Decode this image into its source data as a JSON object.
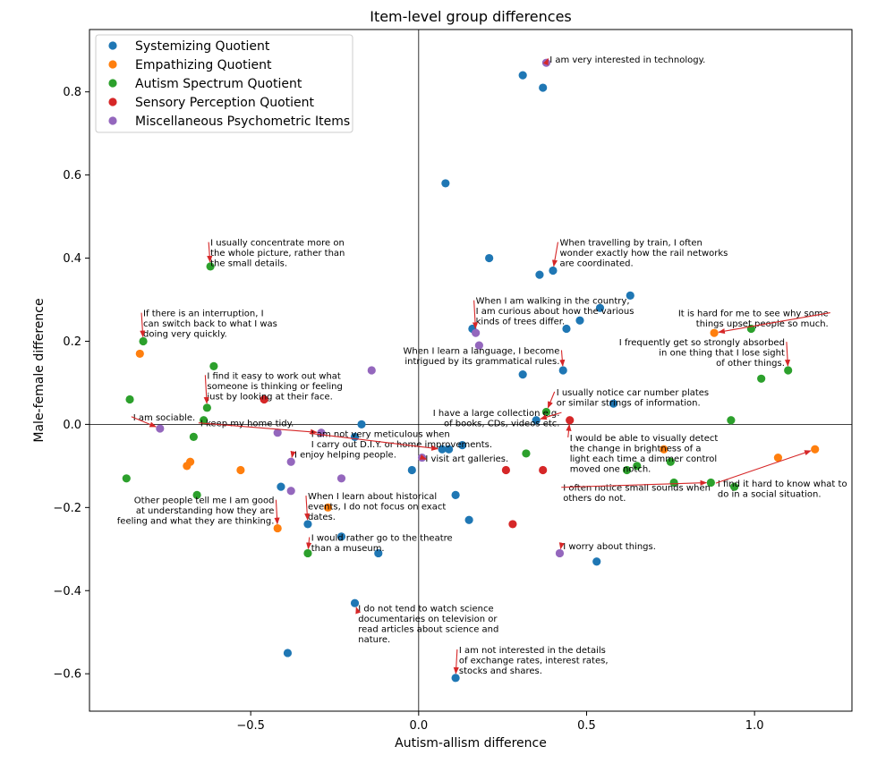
{
  "chart_data": {
    "type": "scatter",
    "title": "Item-level group differences",
    "xlabel": "Autism-allism difference",
    "ylabel": "Male-female difference",
    "xlim": [
      -0.98,
      1.29
    ],
    "ylim": [
      -0.69,
      0.95
    ],
    "xticks": [
      -0.5,
      0.0,
      0.5,
      1.0
    ],
    "yticks": [
      -0.6,
      -0.4,
      -0.2,
      0.0,
      0.2,
      0.4,
      0.6,
      0.8
    ],
    "xtick_labels": [
      "−0.5",
      "0.0",
      "0.5",
      "1.0"
    ],
    "ytick_labels": [
      "−0.6",
      "−0.4",
      "−0.2",
      "0.0",
      "0.2",
      "0.4",
      "0.6",
      "0.8"
    ],
    "zero_lines": true,
    "legend_position": "top-left",
    "series": [
      {
        "name": "Systemizing Quotient",
        "color": "#1f77b4",
        "points": [
          [
            0.31,
            0.84
          ],
          [
            0.37,
            0.81
          ],
          [
            0.08,
            0.58
          ],
          [
            0.21,
            0.4
          ],
          [
            0.36,
            0.36
          ],
          [
            0.4,
            0.37
          ],
          [
            0.63,
            0.31
          ],
          [
            0.54,
            0.28
          ],
          [
            0.48,
            0.25
          ],
          [
            0.44,
            0.23
          ],
          [
            0.16,
            0.23
          ],
          [
            0.31,
            0.12
          ],
          [
            0.43,
            0.13
          ],
          [
            0.58,
            0.05
          ],
          [
            0.35,
            0.01
          ],
          [
            -0.17,
            0.0
          ],
          [
            -0.19,
            -0.03
          ],
          [
            0.13,
            -0.05
          ],
          [
            0.07,
            -0.06
          ],
          [
            0.09,
            -0.06
          ],
          [
            -0.02,
            -0.11
          ],
          [
            -0.41,
            -0.15
          ],
          [
            0.11,
            -0.17
          ],
          [
            -0.33,
            -0.24
          ],
          [
            0.15,
            -0.23
          ],
          [
            -0.23,
            -0.27
          ],
          [
            -0.12,
            -0.31
          ],
          [
            0.53,
            -0.33
          ],
          [
            -0.19,
            -0.43
          ],
          [
            -0.39,
            -0.55
          ],
          [
            0.11,
            -0.61
          ]
        ]
      },
      {
        "name": "Empathizing Quotient",
        "color": "#ff7f0e",
        "points": [
          [
            -0.83,
            0.17
          ],
          [
            -0.68,
            -0.09
          ],
          [
            -0.69,
            -0.1
          ],
          [
            -0.53,
            -0.11
          ],
          [
            -0.27,
            -0.2
          ],
          [
            -0.42,
            -0.25
          ],
          [
            0.73,
            -0.06
          ],
          [
            0.88,
            0.22
          ],
          [
            1.07,
            -0.08
          ],
          [
            1.18,
            -0.06
          ]
        ]
      },
      {
        "name": "Autism Spectrum Quotient",
        "color": "#2ca02c",
        "points": [
          [
            -0.62,
            0.38
          ],
          [
            -0.82,
            0.2
          ],
          [
            -0.61,
            0.14
          ],
          [
            -0.86,
            0.06
          ],
          [
            -0.63,
            0.04
          ],
          [
            -0.64,
            0.01
          ],
          [
            -0.67,
            -0.03
          ],
          [
            -0.87,
            -0.13
          ],
          [
            -0.66,
            -0.17
          ],
          [
            -0.33,
            -0.31
          ],
          [
            0.32,
            -0.07
          ],
          [
            0.38,
            0.03
          ],
          [
            0.62,
            -0.11
          ],
          [
            0.65,
            -0.1
          ],
          [
            0.75,
            -0.09
          ],
          [
            0.76,
            -0.14
          ],
          [
            0.87,
            -0.14
          ],
          [
            0.94,
            -0.15
          ],
          [
            0.93,
            0.01
          ],
          [
            0.99,
            0.23
          ],
          [
            1.02,
            0.11
          ],
          [
            1.1,
            0.13
          ]
        ]
      },
      {
        "name": "Sensory Perception Quotient",
        "color": "#d62728",
        "points": [
          [
            -0.46,
            0.06
          ],
          [
            0.26,
            -0.11
          ],
          [
            0.37,
            -0.11
          ],
          [
            0.28,
            -0.24
          ],
          [
            0.45,
            0.01
          ]
        ]
      },
      {
        "name": "Miscellaneous Psychometric Items",
        "color": "#9467bd",
        "points": [
          [
            0.38,
            0.87
          ],
          [
            0.18,
            0.19
          ],
          [
            0.17,
            0.22
          ],
          [
            -0.14,
            0.13
          ],
          [
            -0.77,
            -0.01
          ],
          [
            -0.42,
            -0.02
          ],
          [
            -0.29,
            -0.02
          ],
          [
            -0.38,
            -0.09
          ],
          [
            0.01,
            -0.08
          ],
          [
            -0.23,
            -0.13
          ],
          [
            -0.38,
            -0.16
          ],
          [
            0.42,
            -0.31
          ]
        ]
      }
    ],
    "annotations": [
      {
        "lines": [
          "I am very interested in technology."
        ],
        "text_at": [
          0.39,
          0.87
        ],
        "point": [
          0.38,
          0.87
        ],
        "arrow": true
      },
      {
        "lines": [
          "I usually concentrate more on",
          "the whole picture, rather than",
          "the small details."
        ],
        "text_at": [
          -0.62,
          0.43
        ],
        "point": [
          -0.62,
          0.38
        ],
        "arrow": true
      },
      {
        "lines": [
          "When travelling by train, I often",
          "wonder exactly how the rail networks",
          "are coordinated."
        ],
        "text_at": [
          0.42,
          0.43
        ],
        "point": [
          0.4,
          0.37
        ],
        "arrow": true
      },
      {
        "lines": [
          "When I am walking in the country,",
          "I am curious about how the various",
          "kinds of trees differ."
        ],
        "text_at": [
          0.17,
          0.29
        ],
        "point": [
          0.17,
          0.22
        ],
        "arrow": true
      },
      {
        "lines": [
          "If there is an interruption, I",
          "can switch back to what I was",
          "doing very quickly."
        ],
        "text_at": [
          -0.82,
          0.26
        ],
        "point": [
          -0.82,
          0.2
        ],
        "arrow": true
      },
      {
        "lines": [
          "It is hard for me to see why some",
          "things upset people so much."
        ],
        "text_at": [
          1.22,
          0.26
        ],
        "point": [
          0.88,
          0.22
        ],
        "arrow": true,
        "align": "end"
      },
      {
        "lines": [
          "I frequently get so strongly absorbed",
          "in one thing that I lose sight",
          "of other things."
        ],
        "text_at": [
          1.09,
          0.19
        ],
        "point": [
          1.1,
          0.13
        ],
        "arrow": true,
        "align": "end"
      },
      {
        "lines": [
          "When I learn a language, I become",
          "intrigued by its grammatical rules."
        ],
        "text_at": [
          0.42,
          0.17
        ],
        "point": [
          0.43,
          0.13
        ],
        "arrow": true,
        "align": "end"
      },
      {
        "lines": [
          "I find it easy to work out what",
          "someone is thinking or feeling",
          "just by looking at their face."
        ],
        "text_at": [
          -0.63,
          0.11
        ],
        "point": [
          -0.63,
          0.04
        ],
        "arrow": true
      },
      {
        "lines": [
          "I usually notice car number plates",
          "or similar strings of information."
        ],
        "text_at": [
          0.41,
          0.07
        ],
        "point": [
          0.38,
          0.03
        ],
        "arrow": true
      },
      {
        "lines": [
          "I am sociable."
        ],
        "text_at": [
          -0.85,
          0.01
        ],
        "point": [
          -0.77,
          -0.01
        ],
        "arrow": true
      },
      {
        "lines": [
          "I keep my home tidy."
        ],
        "text_at": [
          -0.65,
          -0.005
        ],
        "point": [
          -0.29,
          -0.02
        ],
        "arrow": true
      },
      {
        "lines": [
          "I have a large collection e.g.",
          "of books, CDs, videos etc."
        ],
        "text_at": [
          0.42,
          0.02
        ],
        "point": [
          0.35,
          0.01
        ],
        "arrow": true,
        "align": "end"
      },
      {
        "lines": [
          "I would be able to visually detect",
          "the change in brightness of a",
          "light each time a dimmer control",
          "moved one notch."
        ],
        "text_at": [
          0.45,
          -0.04
        ],
        "point": [
          0.45,
          0.01
        ],
        "arrow": true
      },
      {
        "lines": [
          "I am not very meticulous when",
          "I carry out D.I.Y. or home improvements."
        ],
        "text_at": [
          -0.32,
          -0.03
        ],
        "point": [
          0.07,
          -0.06
        ],
        "arrow": true
      },
      {
        "lines": [
          "I enjoy helping people."
        ],
        "text_at": [
          -0.37,
          -0.08
        ],
        "point": [
          -0.38,
          -0.09
        ],
        "arrow": true
      },
      {
        "lines": [
          "I visit art galleries."
        ],
        "text_at": [
          0.02,
          -0.09
        ],
        "point": [
          0.01,
          -0.08
        ],
        "arrow": true
      },
      {
        "lines": [
          "I often notice small sounds when",
          "others do not."
        ],
        "text_at": [
          0.43,
          -0.16
        ],
        "point": [
          0.87,
          -0.14
        ],
        "arrow": true
      },
      {
        "lines": [
          "I find it hard to know what to",
          "do in a social situation."
        ],
        "text_at": [
          0.89,
          -0.15
        ],
        "point": [
          1.18,
          -0.06
        ],
        "arrow": true
      },
      {
        "lines": [
          "Other people tell me I am good",
          "at understanding how they are",
          "feeling and what they are thinking."
        ],
        "text_at": [
          -0.43,
          -0.19
        ],
        "point": [
          -0.42,
          -0.25
        ],
        "arrow": true,
        "align": "end"
      },
      {
        "lines": [
          "When I learn about historical",
          "events, I do not focus on exact",
          "dates."
        ],
        "text_at": [
          -0.33,
          -0.18
        ],
        "point": [
          -0.33,
          -0.24
        ],
        "arrow": true
      },
      {
        "lines": [
          "I would rather go to the theatre",
          "than a museum."
        ],
        "text_at": [
          -0.32,
          -0.28
        ],
        "point": [
          -0.33,
          -0.31
        ],
        "arrow": true
      },
      {
        "lines": [
          "I worry about things."
        ],
        "text_at": [
          0.43,
          -0.3
        ],
        "point": [
          0.42,
          -0.31
        ],
        "arrow": true
      },
      {
        "lines": [
          "I do not tend to watch science",
          "documentaries on television or",
          "read articles about science and",
          "nature."
        ],
        "text_at": [
          -0.18,
          -0.45
        ],
        "point": [
          -0.19,
          -0.43
        ],
        "arrow": true
      },
      {
        "lines": [
          "I am not interested in the details",
          "of exchange rates, interest rates,",
          "stocks and shares."
        ],
        "text_at": [
          0.12,
          -0.55
        ],
        "point": [
          0.11,
          -0.61
        ],
        "arrow": true
      }
    ]
  }
}
